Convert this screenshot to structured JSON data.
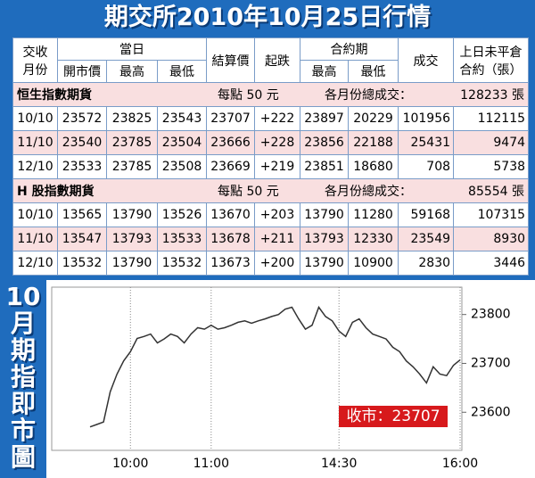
{
  "title": "期交所2010年10月25日行情",
  "table": {
    "header": {
      "month": [
        "交收",
        "月份"
      ],
      "day": "當日",
      "open": "開市價",
      "high": "最高",
      "low": "最低",
      "settle": "結算價",
      "change": "起跌",
      "contract": "合約期",
      "c_high": "最高",
      "c_low": "最低",
      "volume": "成交",
      "oi": [
        "上日未平倉",
        "合約（張）"
      ]
    },
    "sections": [
      {
        "name": "恒生指數期貨",
        "point": "每點 50 元",
        "total_label": "各月份總成交：",
        "total": "128233 張",
        "rows": [
          [
            "10/10",
            23572,
            23825,
            23543,
            23707,
            "+222",
            23897,
            20229,
            101956,
            112115
          ],
          [
            "11/10",
            23540,
            23785,
            23504,
            23666,
            "+228",
            23856,
            22188,
            25431,
            9474
          ],
          [
            "12/10",
            23533,
            23785,
            23508,
            23669,
            "+219",
            23851,
            18680,
            708,
            5738
          ]
        ]
      },
      {
        "name": "H 股指數期貨",
        "point": "每點 50 元",
        "total_label": "各月份總成交：",
        "total": "85554 張",
        "rows": [
          [
            "10/10",
            13565,
            13790,
            13526,
            13670,
            "+203",
            13790,
            11280,
            59168,
            107315
          ],
          [
            "11/10",
            13547,
            13793,
            13533,
            13678,
            "+211",
            13793,
            12330,
            23549,
            8930
          ],
          [
            "12/10",
            13532,
            13790,
            13532,
            13673,
            "+200",
            13790,
            10900,
            2830,
            3446
          ]
        ]
      }
    ]
  },
  "chart_data": {
    "type": "line",
    "title": "10月期指即市圖",
    "annotation": "收市：23707",
    "categories": [
      null,
      null,
      null,
      null,
      null,
      null,
      "10:00",
      null,
      null,
      null,
      null,
      null,
      null,
      null,
      null,
      null,
      null,
      null,
      "11:00",
      null,
      null,
      null,
      null,
      null,
      null,
      null,
      null,
      null,
      null,
      null,
      null,
      null,
      null,
      null,
      null,
      null,
      null,
      "14:30",
      null,
      null,
      null,
      null,
      null,
      null,
      null,
      null,
      null,
      null,
      null,
      null,
      null,
      null,
      null,
      null,
      null,
      "16:00"
    ],
    "values": [
      23570,
      23575,
      23580,
      23642,
      23678,
      23705,
      23724,
      23751,
      23755,
      23760,
      23742,
      23750,
      23760,
      23755,
      23742,
      23760,
      23773,
      23770,
      23778,
      23770,
      23773,
      23778,
      23784,
      23787,
      23782,
      23787,
      23791,
      23796,
      23800,
      23811,
      23815,
      23791,
      23770,
      23778,
      23815,
      23796,
      23787,
      23766,
      23755,
      23784,
      23791,
      23773,
      23760,
      23755,
      23750,
      23733,
      23724,
      23705,
      23693,
      23678,
      23660,
      23693,
      23678,
      23675,
      23696,
      23707
    ],
    "color": "#333333",
    "ylim": [
      23522,
      23856
    ],
    "yticks": [
      23600,
      23700,
      23800
    ],
    "grid": true
  }
}
